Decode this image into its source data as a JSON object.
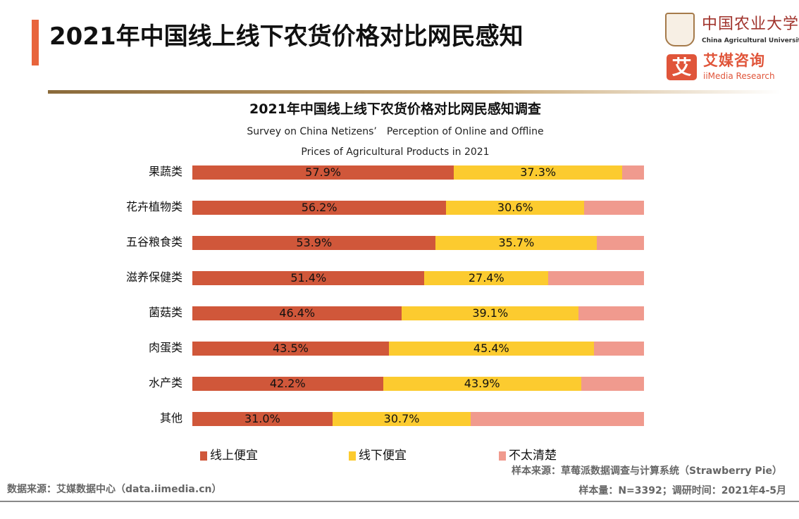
{
  "header": {
    "title": "2021年中国线上线下农货价格对比网民感知"
  },
  "logos": {
    "cau_cn": "中国农业大学",
    "cau_en": "China Agricultural University",
    "iimedia_mark": "艾",
    "iimedia_cn": "艾媒咨询",
    "iimedia_en": "iiMedia Research"
  },
  "chart_data": {
    "type": "bar",
    "stacked": true,
    "orientation": "horizontal",
    "title": "2021年中国线上线下农货价格对比网民感知调查",
    "subtitle_line1": "Survey on China Netizens’　Perception of Online and Offline",
    "subtitle_line2": "Prices of Agricultural Products in 2021",
    "categories": [
      "果蔬类",
      "花卉植物类",
      "五谷粮食类",
      "滋养保健类",
      "菌菇类",
      "肉蛋类",
      "水产类",
      "其他"
    ],
    "series": [
      {
        "name": "线上便宜",
        "color": "#d0573a",
        "values": [
          57.9,
          56.2,
          53.9,
          51.4,
          46.4,
          43.5,
          42.2,
          31.0
        ],
        "labels": [
          "57.9%",
          "56.2%",
          "53.9%",
          "51.4%",
          "46.4%",
          "43.5%",
          "42.2%",
          "31.0%"
        ]
      },
      {
        "name": "线下便宜",
        "color": "#fccb2f",
        "values": [
          37.3,
          30.6,
          35.7,
          27.4,
          39.1,
          45.4,
          43.9,
          30.7
        ],
        "labels": [
          "37.3%",
          "30.6%",
          "35.7%",
          "27.4%",
          "39.1%",
          "45.4%",
          "43.9%",
          "30.7%"
        ]
      },
      {
        "name": "不太清楚",
        "color": "#f09a8e",
        "values": [
          4.8,
          13.2,
          10.4,
          21.2,
          14.5,
          11.1,
          13.9,
          38.3
        ]
      }
    ],
    "xlim": [
      0,
      100
    ],
    "grid": false,
    "legend": "bottom"
  },
  "footer": {
    "sample_source": "样本来源：草莓派数据调查与计算系统（Strawberry Pie）",
    "data_source": "数据来源：艾媒数据中心（data.iimedia.cn）",
    "sample_info": "样本量：N=3392；调研时间：2021年4-5月"
  }
}
